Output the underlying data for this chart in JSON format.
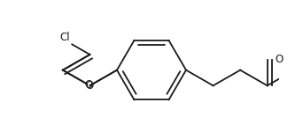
{
  "bg_color": "#ffffff",
  "line_color": "#1a1a1a",
  "line_width": 1.3,
  "font_size_label": 8.5,
  "Cl_label": "Cl",
  "O_ether_label": "O",
  "O_keto_label": "O"
}
